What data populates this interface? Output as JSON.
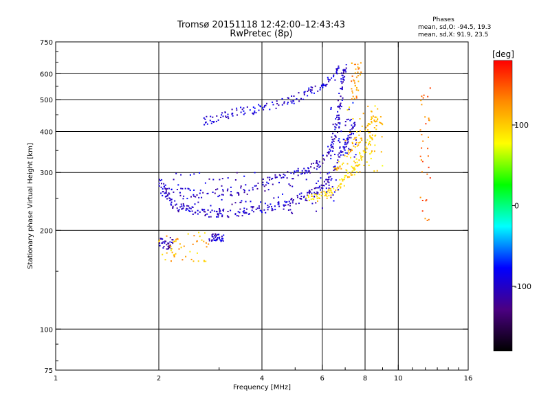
{
  "chart_data": {
    "type": "scatter",
    "title": "Tromsø 20151118 12:42:00–12:43:43",
    "subtitle": "RwPretec (8p)",
    "xlabel": "Frequency [MHz]",
    "ylabel": "Stationary phase Virtual Height [km]",
    "x_scale": "log",
    "y_scale": "log",
    "xlim": [
      1,
      16
    ],
    "ylim": [
      75,
      750
    ],
    "x_ticks": [
      1,
      2,
      4,
      6,
      8,
      10,
      16
    ],
    "y_ticks": [
      75,
      100,
      200,
      300,
      400,
      500,
      600,
      750
    ],
    "grid_x": [
      2,
      4,
      6,
      8,
      10
    ],
    "grid_y": [
      100,
      200,
      300,
      400,
      500,
      600
    ],
    "phases_header": "Phases",
    "phase_stats": [
      "mean, sd,O: -94.5, 19.3",
      "mean, sd,X:  91.9, 23.5"
    ],
    "colorbar": {
      "label": "[deg]",
      "range": [
        -180,
        180
      ],
      "ticks": [
        {
          "value": 100,
          "label": "100"
        },
        {
          "value": 0,
          "label": "0"
        },
        {
          "value": -100,
          "label": "-100"
        }
      ],
      "colors": [
        "#000000",
        "#4b0082",
        "#0000ff",
        "#00ffff",
        "#00ff00",
        "#ffff00",
        "#ff8c00",
        "#ff0000"
      ]
    },
    "traces": [
      {
        "name": "",
        "phase": -100,
        "points": [
          [
            2.0,
            285
          ],
          [
            2.1,
            255
          ],
          [
            2.2,
            240
          ],
          [
            2.4,
            232
          ],
          [
            2.6,
            228
          ],
          [
            2.8,
            226
          ],
          [
            3.0,
            226
          ],
          [
            3.3,
            226
          ],
          [
            3.6,
            228
          ],
          [
            4.0,
            231
          ],
          [
            4.4,
            236
          ],
          [
            4.8,
            242
          ],
          [
            5.2,
            250
          ],
          [
            5.6,
            260
          ],
          [
            6.0,
            272
          ],
          [
            6.3,
            290
          ],
          [
            6.6,
            315
          ],
          [
            6.9,
            350
          ],
          [
            7.2,
            390
          ],
          [
            7.5,
            430
          ]
        ]
      },
      {
        "name": "",
        "phase": -100,
        "points": [
          [
            2.0,
            260
          ],
          [
            2.3,
            262
          ],
          [
            2.7,
            258
          ],
          [
            3.2,
            262
          ],
          [
            3.7,
            270
          ],
          [
            4.2,
            282
          ],
          [
            4.7,
            292
          ],
          [
            5.2,
            300
          ],
          [
            5.7,
            312
          ],
          [
            6.1,
            330
          ],
          [
            6.4,
            360
          ],
          [
            6.6,
            400
          ],
          [
            6.7,
            450
          ],
          [
            6.8,
            520
          ],
          [
            6.9,
            590
          ],
          [
            7.0,
            630
          ]
        ]
      },
      {
        "name": "",
        "phase": -95,
        "points": [
          [
            2.7,
            430
          ],
          [
            2.9,
            440
          ],
          [
            3.2,
            455
          ],
          [
            3.6,
            462
          ],
          [
            4.0,
            472
          ],
          [
            4.5,
            488
          ],
          [
            5.0,
            505
          ],
          [
            5.5,
            525
          ],
          [
            6.0,
            550
          ],
          [
            6.4,
            580
          ],
          [
            6.7,
            615
          ]
        ]
      },
      {
        "name": "",
        "phase": 95,
        "points": [
          [
            5.4,
            248
          ],
          [
            5.8,
            252
          ],
          [
            6.2,
            258
          ],
          [
            6.6,
            268
          ],
          [
            7.0,
            285
          ],
          [
            7.4,
            305
          ],
          [
            7.8,
            335
          ],
          [
            8.2,
            370
          ],
          [
            8.6,
            410
          ]
        ]
      },
      {
        "name": "",
        "phase": 110,
        "points": [
          [
            6.5,
            300
          ],
          [
            7.0,
            330
          ],
          [
            7.5,
            370
          ],
          [
            8.0,
            410
          ],
          [
            8.5,
            440
          ],
          [
            9.0,
            430
          ]
        ]
      }
    ],
    "clusters": [
      {
        "f": [
          2.0,
          6.8
        ],
        "h": [
          225,
          300
        ],
        "phase": -100
      },
      {
        "f": [
          2.0,
          2.2
        ],
        "h": [
          175,
          190
        ],
        "phase": -110
      },
      {
        "f": [
          2.8,
          3.1
        ],
        "h": [
          185,
          195
        ],
        "phase": -100
      },
      {
        "f": [
          6.3,
          7.6
        ],
        "h": [
          320,
          500
        ],
        "phase": -90
      },
      {
        "f": [
          7.0,
          9.0
        ],
        "h": [
          300,
          480
        ],
        "phase": 100
      },
      {
        "f": [
          2.0,
          2.8
        ],
        "h": [
          160,
          200
        ],
        "phase": 110
      },
      {
        "f": [
          11.6,
          12.4
        ],
        "h": [
          200,
          580
        ],
        "phase": 140
      },
      {
        "f": [
          7.3,
          7.8
        ],
        "h": [
          500,
          650
        ],
        "phase": 130
      }
    ]
  }
}
